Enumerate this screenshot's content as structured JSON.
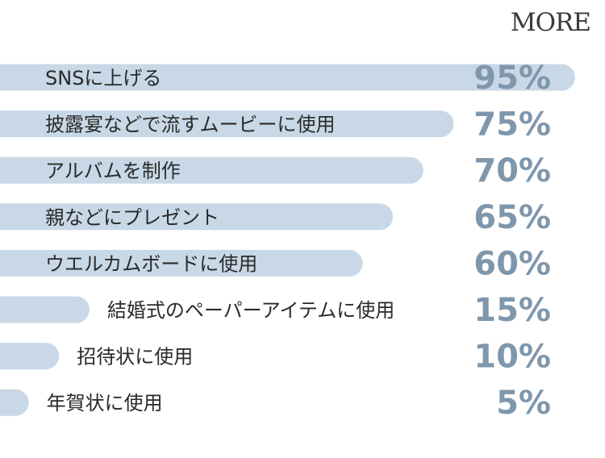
{
  "brand": {
    "logo_text": "MORE"
  },
  "colors": {
    "bar": "#c8d8e6",
    "value_text": "#7f97ac",
    "label_text": "#2a2a2a"
  },
  "chart_data": {
    "type": "bar",
    "orientation": "horizontal",
    "categories": [
      "SNSに上げる",
      "披露宴などで流すムービーに使用",
      "アルバムを制作",
      "親などにプレゼント",
      "ウエルカムボードに使用",
      "結婚式のペーパーアイテムに使用",
      "招待状に使用",
      "年賀状に使用"
    ],
    "values": [
      95,
      75,
      70,
      65,
      60,
      15,
      10,
      5
    ],
    "data_labels": [
      "95%",
      "75%",
      "70%",
      "65%",
      "60%",
      "15%",
      "10%",
      "5%"
    ],
    "title": "",
    "xlabel": "",
    "ylabel": "",
    "xlim": [
      0,
      100
    ],
    "grid": false,
    "legend": "none"
  }
}
